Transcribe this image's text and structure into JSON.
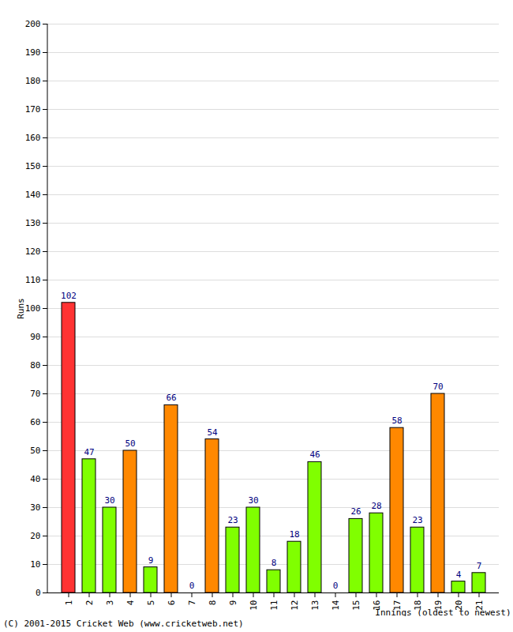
{
  "chart_data": {
    "type": "bar",
    "categories": [
      "1",
      "2",
      "3",
      "4",
      "5",
      "6",
      "7",
      "8",
      "9",
      "10",
      "11",
      "12",
      "13",
      "14",
      "15",
      "16",
      "17",
      "18",
      "19",
      "20",
      "21"
    ],
    "values": [
      102,
      47,
      30,
      50,
      9,
      66,
      0,
      54,
      23,
      30,
      8,
      18,
      46,
      0,
      26,
      28,
      58,
      23,
      70,
      4,
      7
    ],
    "colors": [
      "#ff3333",
      "#80ff00",
      "#80ff00",
      "#ff8800",
      "#80ff00",
      "#ff8800",
      "#80ff00",
      "#ff8800",
      "#80ff00",
      "#80ff00",
      "#80ff00",
      "#80ff00",
      "#80ff00",
      "#80ff00",
      "#80ff00",
      "#80ff00",
      "#ff8800",
      "#80ff00",
      "#ff8800",
      "#80ff00",
      "#80ff00"
    ],
    "x_label": "Innings (oldest to newest)",
    "y_label": "Runs",
    "caption": "(C) 2001-2015 Cricket Web (www.cricketweb.net)",
    "ylim": [
      0,
      200
    ],
    "yticks": [
      0,
      10,
      20,
      30,
      40,
      50,
      60,
      70,
      80,
      90,
      100,
      110,
      120,
      130,
      140,
      150,
      160,
      170,
      180,
      190,
      200
    ],
    "grid": true,
    "data_labels": true
  }
}
